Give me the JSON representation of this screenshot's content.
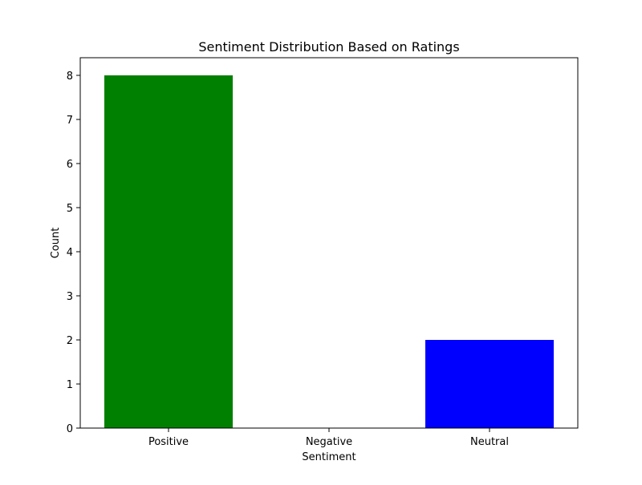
{
  "chart_data": {
    "type": "bar",
    "title": "Sentiment Distribution Based on Ratings",
    "xlabel": "Sentiment",
    "ylabel": "Count",
    "categories": [
      "Positive",
      "Negative",
      "Neutral"
    ],
    "values": [
      8,
      0,
      2
    ],
    "colors": [
      "#008000",
      "#ff0000",
      "#0000ff"
    ],
    "ylim": [
      0,
      8.4
    ],
    "yticks": [
      0,
      1,
      2,
      3,
      4,
      5,
      6,
      7,
      8
    ],
    "grid": false,
    "legend": "none"
  }
}
